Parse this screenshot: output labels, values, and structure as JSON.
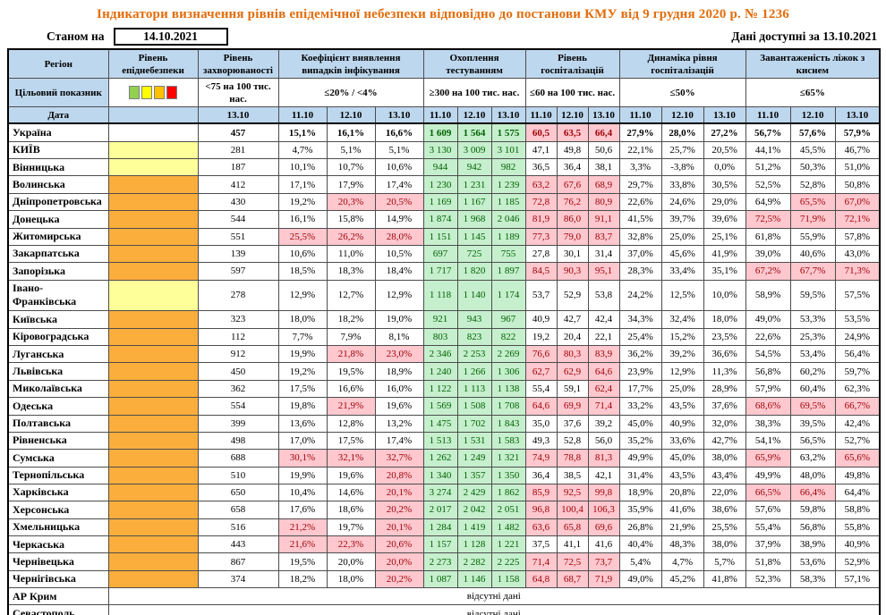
{
  "title": "Індикатори визначення рівнів епідемічної небезпеки відповідно до постанови КМУ від 9 грудня 2020 р. № 1236",
  "as_of_label": "Станом на",
  "as_of_date": "14.10.2021",
  "data_available_label": "Дані доступні за 13.10.2021",
  "no_data_text": "відсутні дані",
  "head": {
    "region": "Регіон",
    "epidemic_level": "Рівень епіднебезпеки",
    "morbidity": "Рівень захворюваності",
    "detection": "Коефіцієнт виявлення випадків інфікування",
    "testing": "Охоплення тестуванням",
    "hospitalization": "Рівень госпіталізацій",
    "hosp_dynamics": "Динаміка рівня госпіталізацій",
    "bed_occupancy": "Завантаженість ліжок з киснем",
    "target_label": "Цільовий показник",
    "date_label": "Дата",
    "targets": {
      "morbidity": "<75 на 100 тис. нас.",
      "detection": "≤20% / <4%",
      "testing": "≥300 на 100 тис. нас.",
      "hospitalization": "≤60 на 100 тис. нас.",
      "hosp_dynamics": "≤50%",
      "bed_occupancy": "≤65%"
    },
    "morbidity_date": "13.10",
    "dates": [
      "11.10",
      "12.10",
      "13.10"
    ]
  },
  "colors": {
    "title": "#E36C0A",
    "header_bg": "#BDD7EE",
    "good_bg": "#C6EFCE",
    "good_text": "#006100",
    "alert_bg": "#FFC7CE",
    "alert_text": "#9C0006",
    "level_yellow": "#FFFF99",
    "level_orange": "#FBAE3C",
    "legend": [
      "#92D050",
      "#FFFF00",
      "#FFC000",
      "#FF0000"
    ]
  },
  "rows": [
    {
      "region": "Україна",
      "level": "",
      "bold": true,
      "morbidity": "457",
      "detection": [
        "15,1%",
        "16,1%",
        "16,6%"
      ],
      "testing": [
        "1 609",
        "1 564",
        "1 575"
      ],
      "hosp": [
        "60,5",
        "63,5",
        "66,4"
      ],
      "hosp_flags": "ppp",
      "dynamics": [
        "27,9%",
        "28,0%",
        "27,2%"
      ],
      "occupancy": [
        "56,7%",
        "57,6%",
        "57,9%"
      ]
    },
    {
      "region": "КИЇВ",
      "level": "yellow",
      "morbidity": "281",
      "detection": [
        "4,7%",
        "5,1%",
        "5,1%"
      ],
      "testing": [
        "3 130",
        "3 009",
        "3 101"
      ],
      "hosp": [
        "47,1",
        "49,8",
        "50,6"
      ],
      "dynamics": [
        "22,1%",
        "25,7%",
        "20,5%"
      ],
      "occupancy": [
        "44,1%",
        "45,5%",
        "46,7%"
      ]
    },
    {
      "region": "Вінницька",
      "level": "yellow",
      "morbidity": "187",
      "detection": [
        "10,1%",
        "10,7%",
        "10,6%"
      ],
      "testing": [
        "944",
        "942",
        "982"
      ],
      "hosp": [
        "36,5",
        "36,4",
        "38,1"
      ],
      "dynamics": [
        "3,3%",
        "-3,8%",
        "0,0%"
      ],
      "occupancy": [
        "51,2%",
        "50,3%",
        "51,0%"
      ]
    },
    {
      "region": "Волинська",
      "level": "orange",
      "morbidity": "412",
      "detection": [
        "17,1%",
        "17,9%",
        "17,4%"
      ],
      "testing": [
        "1 230",
        "1 231",
        "1 239"
      ],
      "hosp": [
        "63,2",
        "67,6",
        "68,9"
      ],
      "hosp_flags": "ppp",
      "dynamics": [
        "29,7%",
        "33,8%",
        "30,5%"
      ],
      "occupancy": [
        "52,5%",
        "52,8%",
        "50,8%"
      ]
    },
    {
      "region": "Дніпропетровська",
      "level": "orange",
      "morbidity": "430",
      "detection": [
        "19,2%",
        "20,3%",
        "20,5%"
      ],
      "detection_flags": "npp",
      "testing": [
        "1 169",
        "1 167",
        "1 185"
      ],
      "hosp": [
        "72,8",
        "76,2",
        "80,9"
      ],
      "hosp_flags": "ppp",
      "dynamics": [
        "22,6%",
        "24,6%",
        "29,0%"
      ],
      "occupancy": [
        "64,9%",
        "65,5%",
        "67,0%"
      ],
      "occupancy_flags": "npp"
    },
    {
      "region": "Донецька",
      "level": "orange",
      "morbidity": "544",
      "detection": [
        "16,1%",
        "15,8%",
        "14,9%"
      ],
      "testing": [
        "1 874",
        "1 968",
        "2 046"
      ],
      "hosp": [
        "81,9",
        "86,0",
        "91,1"
      ],
      "hosp_flags": "ppp",
      "dynamics": [
        "41,5%",
        "39,7%",
        "39,6%"
      ],
      "occupancy": [
        "72,5%",
        "71,9%",
        "72,1%"
      ],
      "occupancy_flags": "ppp"
    },
    {
      "region": "Житомирська",
      "level": "orange",
      "morbidity": "551",
      "detection": [
        "25,5%",
        "26,2%",
        "28,0%"
      ],
      "detection_flags": "ppp",
      "testing": [
        "1 151",
        "1 145",
        "1 189"
      ],
      "hosp": [
        "77,3",
        "79,0",
        "83,7"
      ],
      "hosp_flags": "ppp",
      "dynamics": [
        "32,8%",
        "25,0%",
        "25,1%"
      ],
      "occupancy": [
        "61,8%",
        "55,9%",
        "57,8%"
      ]
    },
    {
      "region": "Закарпатська",
      "level": "orange",
      "morbidity": "139",
      "detection": [
        "10,6%",
        "11,0%",
        "10,5%"
      ],
      "testing": [
        "697",
        "725",
        "755"
      ],
      "hosp": [
        "27,8",
        "30,1",
        "31,4"
      ],
      "dynamics": [
        "37,0%",
        "45,6%",
        "41,9%"
      ],
      "occupancy": [
        "39,0%",
        "40,6%",
        "43,0%"
      ]
    },
    {
      "region": "Запорізька",
      "level": "orange",
      "morbidity": "597",
      "detection": [
        "18,5%",
        "18,3%",
        "18,4%"
      ],
      "testing": [
        "1 717",
        "1 820",
        "1 897"
      ],
      "hosp": [
        "84,5",
        "90,3",
        "95,1"
      ],
      "hosp_flags": "ppp",
      "dynamics": [
        "28,3%",
        "33,4%",
        "35,1%"
      ],
      "occupancy": [
        "67,2%",
        "67,7%",
        "71,3%"
      ],
      "occupancy_flags": "ppp"
    },
    {
      "region": "Івано-Франківська",
      "level": "yellow",
      "morbidity": "278",
      "detection": [
        "12,9%",
        "12,7%",
        "12,9%"
      ],
      "testing": [
        "1 118",
        "1 140",
        "1 174"
      ],
      "hosp": [
        "53,7",
        "52,9",
        "53,8"
      ],
      "dynamics": [
        "24,2%",
        "12,5%",
        "10,0%"
      ],
      "occupancy": [
        "58,9%",
        "59,5%",
        "57,5%"
      ]
    },
    {
      "region": "Київська",
      "level": "orange",
      "morbidity": "323",
      "detection": [
        "18,0%",
        "18,2%",
        "19,0%"
      ],
      "testing": [
        "921",
        "943",
        "967"
      ],
      "hosp": [
        "40,9",
        "42,7",
        "42,4"
      ],
      "dynamics": [
        "34,3%",
        "32,4%",
        "18,0%"
      ],
      "occupancy": [
        "49,0%",
        "53,3%",
        "53,5%"
      ]
    },
    {
      "region": "Кіровоградська",
      "level": "orange",
      "morbidity": "112",
      "detection": [
        "7,7%",
        "7,9%",
        "8,1%"
      ],
      "testing": [
        "803",
        "823",
        "822"
      ],
      "hosp": [
        "19,2",
        "20,4",
        "22,1"
      ],
      "dynamics": [
        "25,4%",
        "15,2%",
        "23,5%"
      ],
      "occupancy": [
        "22,6%",
        "25,3%",
        "24,9%"
      ]
    },
    {
      "region": "Луганська",
      "level": "orange",
      "morbidity": "912",
      "detection": [
        "19,9%",
        "21,8%",
        "23,0%"
      ],
      "detection_flags": "npp",
      "testing": [
        "2 346",
        "2 253",
        "2 269"
      ],
      "hosp": [
        "76,6",
        "80,3",
        "83,9"
      ],
      "hosp_flags": "ppp",
      "dynamics": [
        "36,2%",
        "39,2%",
        "36,6%"
      ],
      "occupancy": [
        "54,5%",
        "53,4%",
        "56,4%"
      ]
    },
    {
      "region": "Львівська",
      "level": "orange",
      "morbidity": "450",
      "detection": [
        "19,2%",
        "19,5%",
        "18,9%"
      ],
      "testing": [
        "1 240",
        "1 266",
        "1 306"
      ],
      "hosp": [
        "62,7",
        "62,9",
        "64,6"
      ],
      "hosp_flags": "ppp",
      "dynamics": [
        "23,9%",
        "12,9%",
        "11,3%"
      ],
      "occupancy": [
        "56,8%",
        "60,2%",
        "59,7%"
      ]
    },
    {
      "region": "Миколаївська",
      "level": "orange",
      "morbidity": "362",
      "detection": [
        "17,5%",
        "16,6%",
        "16,0%"
      ],
      "testing": [
        "1 122",
        "1 113",
        "1 138"
      ],
      "hosp": [
        "55,4",
        "59,1",
        "62,4"
      ],
      "hosp_flags": "nnp",
      "dynamics": [
        "17,7%",
        "25,0%",
        "28,9%"
      ],
      "occupancy": [
        "57,9%",
        "60,4%",
        "62,3%"
      ]
    },
    {
      "region": "Одеська",
      "level": "orange",
      "morbidity": "554",
      "detection": [
        "19,8%",
        "21,9%",
        "19,6%"
      ],
      "detection_flags": "npn",
      "testing": [
        "1 569",
        "1 508",
        "1 708"
      ],
      "hosp": [
        "64,6",
        "69,9",
        "71,4"
      ],
      "hosp_flags": "ppp",
      "dynamics": [
        "33,2%",
        "43,5%",
        "37,6%"
      ],
      "occupancy": [
        "68,6%",
        "69,5%",
        "66,7%"
      ],
      "occupancy_flags": "ppp"
    },
    {
      "region": "Полтавська",
      "level": "orange",
      "morbidity": "399",
      "detection": [
        "13,6%",
        "12,8%",
        "13,2%"
      ],
      "testing": [
        "1 475",
        "1 702",
        "1 843"
      ],
      "hosp": [
        "35,0",
        "37,6",
        "39,2"
      ],
      "dynamics": [
        "45,0%",
        "40,9%",
        "32,0%"
      ],
      "occupancy": [
        "38,3%",
        "39,5%",
        "42,4%"
      ]
    },
    {
      "region": "Рівненська",
      "level": "orange",
      "morbidity": "498",
      "detection": [
        "17,0%",
        "17,5%",
        "17,4%"
      ],
      "testing": [
        "1 513",
        "1 531",
        "1 583"
      ],
      "hosp": [
        "49,3",
        "52,8",
        "56,0"
      ],
      "dynamics": [
        "35,2%",
        "33,6%",
        "42,7%"
      ],
      "occupancy": [
        "54,1%",
        "56,5%",
        "52,7%"
      ]
    },
    {
      "region": "Сумська",
      "level": "orange",
      "morbidity": "688",
      "detection": [
        "30,1%",
        "32,1%",
        "32,7%"
      ],
      "detection_flags": "ppp",
      "testing": [
        "1 262",
        "1 249",
        "1 321"
      ],
      "hosp": [
        "74,9",
        "78,8",
        "81,3"
      ],
      "hosp_flags": "ppp",
      "dynamics": [
        "49,9%",
        "45,0%",
        "38,0%"
      ],
      "occupancy": [
        "65,9%",
        "63,2%",
        "65,6%"
      ],
      "occupancy_flags": "pnp"
    },
    {
      "region": "Тернопільська",
      "level": "orange",
      "morbidity": "510",
      "detection": [
        "19,9%",
        "19,6%",
        "20,8%"
      ],
      "detection_flags": "nnp",
      "testing": [
        "1 340",
        "1 357",
        "1 350"
      ],
      "hosp": [
        "36,4",
        "38,5",
        "42,1"
      ],
      "dynamics": [
        "31,4%",
        "43,5%",
        "43,4%"
      ],
      "occupancy": [
        "49,9%",
        "48,0%",
        "49,8%"
      ]
    },
    {
      "region": "Харківська",
      "level": "orange",
      "morbidity": "650",
      "detection": [
        "10,4%",
        "14,6%",
        "20,1%"
      ],
      "detection_flags": "nnp",
      "testing": [
        "3 274",
        "2 429",
        "1 862"
      ],
      "hosp": [
        "85,9",
        "92,5",
        "99,8"
      ],
      "hosp_flags": "ppp",
      "dynamics": [
        "18,9%",
        "20,8%",
        "22,0%"
      ],
      "occupancy": [
        "66,5%",
        "66,4%",
        "64,4%"
      ],
      "occupancy_flags": "ppn"
    },
    {
      "region": "Херсонська",
      "level": "orange",
      "morbidity": "658",
      "detection": [
        "17,6%",
        "18,6%",
        "20,2%"
      ],
      "detection_flags": "nnp",
      "testing": [
        "2 017",
        "2 042",
        "2 051"
      ],
      "hosp": [
        "96,8",
        "100,4",
        "106,3"
      ],
      "hosp_flags": "ppp",
      "dynamics": [
        "35,9%",
        "41,6%",
        "38,6%"
      ],
      "occupancy": [
        "57,6%",
        "59,8%",
        "58,8%"
      ]
    },
    {
      "region": "Хмельницька",
      "level": "orange",
      "morbidity": "516",
      "detection": [
        "21,2%",
        "19,7%",
        "20,1%"
      ],
      "detection_flags": "pnp",
      "testing": [
        "1 284",
        "1 419",
        "1 482"
      ],
      "hosp": [
        "63,6",
        "65,8",
        "69,6"
      ],
      "hosp_flags": "ppp",
      "dynamics": [
        "26,8%",
        "21,9%",
        "25,5%"
      ],
      "occupancy": [
        "55,4%",
        "56,8%",
        "55,8%"
      ]
    },
    {
      "region": "Черкаська",
      "level": "orange",
      "morbidity": "443",
      "detection": [
        "21,6%",
        "22,3%",
        "20,6%"
      ],
      "detection_flags": "ppp",
      "testing": [
        "1 157",
        "1 128",
        "1 221"
      ],
      "hosp": [
        "37,5",
        "41,1",
        "41,6"
      ],
      "dynamics": [
        "40,4%",
        "48,3%",
        "38,0%"
      ],
      "occupancy": [
        "37,9%",
        "38,9%",
        "40,9%"
      ]
    },
    {
      "region": "Чернівецька",
      "level": "orange",
      "morbidity": "867",
      "detection": [
        "19,5%",
        "20,0%",
        "20,0%"
      ],
      "detection_flags": "nnp",
      "testing": [
        "2 273",
        "2 282",
        "2 225"
      ],
      "hosp": [
        "71,4",
        "72,5",
        "73,7"
      ],
      "hosp_flags": "ppp",
      "dynamics": [
        "5,4%",
        "4,7%",
        "5,7%"
      ],
      "occupancy": [
        "51,8%",
        "53,6%",
        "52,9%"
      ]
    },
    {
      "region": "Чернігівська",
      "level": "orange",
      "morbidity": "374",
      "detection": [
        "18,2%",
        "18,0%",
        "20,2%"
      ],
      "detection_flags": "nnp",
      "testing": [
        "1 087",
        "1 146",
        "1 158"
      ],
      "hosp": [
        "64,8",
        "68,7",
        "71,9"
      ],
      "hosp_flags": "ppp",
      "dynamics": [
        "49,0%",
        "45,2%",
        "41,8%"
      ],
      "occupancy": [
        "52,3%",
        "58,3%",
        "57,1%"
      ]
    },
    {
      "region": "АР Крим",
      "no_data": true
    },
    {
      "region": "Севастополь",
      "no_data": true
    }
  ]
}
